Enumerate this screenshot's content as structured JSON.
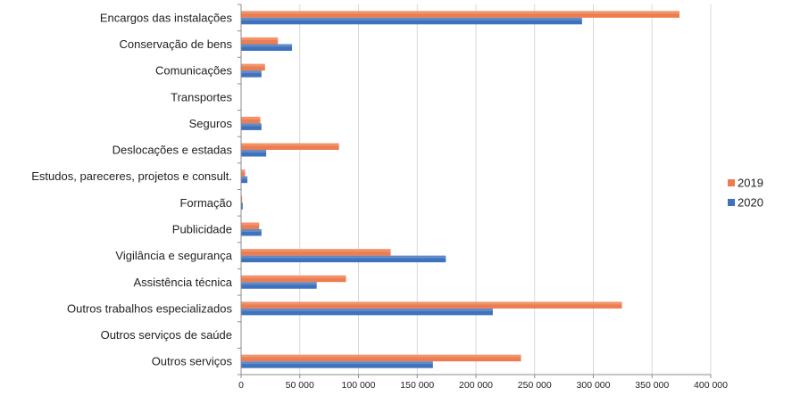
{
  "chart_data": {
    "type": "bar",
    "orientation": "horizontal",
    "categories": [
      "Encargos das instalações",
      "Conservação de bens",
      "Comunicações",
      "Transportes",
      "Seguros",
      "Deslocações e estadas",
      "Estudos, pareceres, projetos e consult.",
      "Formação",
      "Publicidade",
      "Vigilância e segurança",
      "Assistência técnica",
      "Outros trabalhos especializados",
      "Outros serviços de saúde",
      "Outros serviços"
    ],
    "series": [
      {
        "name": "2019",
        "color": "#ED7D4F",
        "values": [
          373000,
          31000,
          20000,
          0,
          16000,
          83000,
          3000,
          500,
          15000,
          127000,
          89000,
          324000,
          0,
          238000
        ]
      },
      {
        "name": "2020",
        "color": "#3F72BC",
        "values": [
          290000,
          43000,
          17000,
          0,
          17000,
          21000,
          5000,
          1000,
          17000,
          174000,
          64000,
          214000,
          0,
          163000
        ]
      }
    ],
    "xlim": [
      0,
      400000
    ],
    "xticks": [
      0,
      50000,
      100000,
      150000,
      200000,
      250000,
      300000,
      350000,
      400000
    ],
    "xtick_labels": [
      "0",
      "50 000",
      "100 000",
      "150 000",
      "200 000",
      "250 000",
      "300 000",
      "350 000",
      "400 000"
    ],
    "title": "",
    "xlabel": "",
    "ylabel": "",
    "grid": "vertical",
    "legend_position": "right"
  }
}
